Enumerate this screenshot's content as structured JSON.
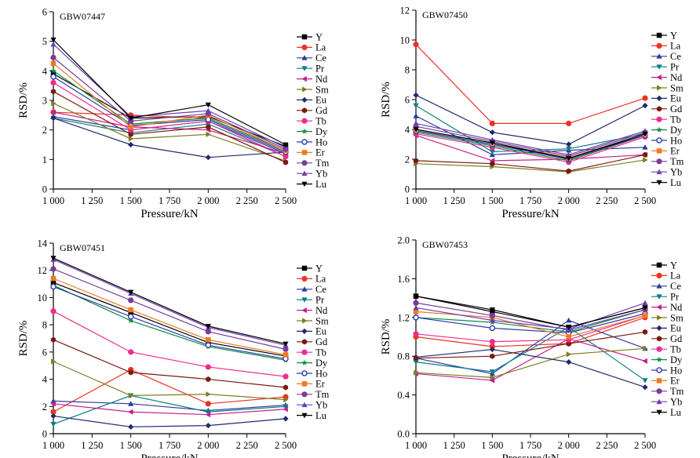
{
  "colors": {
    "Y": "#000000",
    "La": "#ee3224",
    "Ce": "#2b3a9c",
    "Pr": "#0a7d84",
    "Nd": "#c41f8e",
    "Sm": "#7b7f22",
    "Eu": "#1f2a6e",
    "Gd": "#7a1a10",
    "Tb": "#ef2c8c",
    "Dy": "#0a8a44",
    "Ho": "#2f3aa8",
    "Er": "#f07a22",
    "Tm": "#7a3d96",
    "Yb": "#6a3fb0",
    "Lu": "#000000"
  },
  "markers": {
    "Y": "square",
    "La": "circle",
    "Ce": "triangle-up",
    "Pr": "triangle-down",
    "Nd": "triangle-left",
    "Sm": "triangle-right",
    "Eu": "diamond",
    "Gd": "hexagon",
    "Tb": "circle",
    "Dy": "star",
    "Ho": "circle-open",
    "Er": "square",
    "Tm": "circle",
    "Yb": "triangle-up",
    "Lu": "triangle-down"
  },
  "chart_data": [
    {
      "type": "line",
      "title": "GBW07447",
      "xlabel": "Pressure/kN",
      "ylabel": "RSD/%",
      "x": [
        1000,
        1500,
        2000,
        2500
      ],
      "xlim": [
        1000,
        2500
      ],
      "xticks": [
        "1 000",
        "1 250",
        "1 500",
        "1 750",
        "2 000",
        "2 250",
        "2 500"
      ],
      "ylim": [
        0,
        6
      ],
      "yticks": [
        "0",
        "1",
        "2",
        "3",
        "4",
        "5",
        "6"
      ],
      "legend": "right",
      "series": [
        {
          "name": "Y",
          "values": [
            3.9,
            2.4,
            2.45,
            1.45
          ]
        },
        {
          "name": "La",
          "values": [
            2.6,
            2.5,
            2.4,
            1.3
          ]
        },
        {
          "name": "Ce",
          "values": [
            2.45,
            2.0,
            2.3,
            1.2
          ]
        },
        {
          "name": "Pr",
          "values": [
            2.4,
            1.9,
            2.2,
            1.1
          ]
        },
        {
          "name": "Nd",
          "values": [
            2.6,
            2.1,
            2.0,
            1.2
          ]
        },
        {
          "name": "Sm",
          "values": [
            2.9,
            1.7,
            1.85,
            0.95
          ]
        },
        {
          "name": "Eu",
          "values": [
            2.4,
            1.5,
            1.07,
            1.25
          ]
        },
        {
          "name": "Gd",
          "values": [
            3.3,
            1.85,
            2.1,
            0.9
          ]
        },
        {
          "name": "Tb",
          "values": [
            3.6,
            2.0,
            2.3,
            1.1
          ]
        },
        {
          "name": "Dy",
          "values": [
            4.0,
            2.2,
            2.4,
            1.3
          ]
        },
        {
          "name": "Ho",
          "values": [
            3.8,
            2.15,
            2.35,
            1.25
          ]
        },
        {
          "name": "Er",
          "values": [
            4.25,
            2.1,
            2.5,
            1.3
          ]
        },
        {
          "name": "Tm",
          "values": [
            4.45,
            2.3,
            2.55,
            1.35
          ]
        },
        {
          "name": "Yb",
          "values": [
            4.9,
            2.45,
            2.65,
            1.4
          ]
        },
        {
          "name": "Lu",
          "values": [
            5.05,
            2.4,
            2.85,
            1.5
          ]
        }
      ]
    },
    {
      "type": "line",
      "title": "GBW07450",
      "xlabel": "Pressure/kN",
      "ylabel": "RSD/%",
      "x": [
        1000,
        1500,
        2000,
        2500
      ],
      "xlim": [
        1000,
        2500
      ],
      "xticks": [
        "1 000",
        "1 250",
        "1 500",
        "1 750",
        "2 000",
        "2 250",
        "2 500"
      ],
      "ylim": [
        0,
        12
      ],
      "yticks": [
        "0",
        "2",
        "4",
        "6",
        "8",
        "10",
        "12"
      ],
      "legend": "right",
      "series": [
        {
          "name": "Y",
          "values": [
            3.9,
            3.0,
            2.1,
            3.6
          ]
        },
        {
          "name": "La",
          "values": [
            9.7,
            4.4,
            4.4,
            6.1
          ]
        },
        {
          "name": "Ce",
          "values": [
            4.9,
            2.3,
            2.6,
            2.8
          ]
        },
        {
          "name": "Pr",
          "values": [
            5.6,
            2.5,
            2.7,
            3.7
          ]
        },
        {
          "name": "Nd",
          "values": [
            3.6,
            1.9,
            2.0,
            2.3
          ]
        },
        {
          "name": "Sm",
          "values": [
            1.7,
            1.5,
            1.15,
            1.95
          ]
        },
        {
          "name": "Eu",
          "values": [
            6.3,
            3.8,
            3.0,
            5.6
          ]
        },
        {
          "name": "Gd",
          "values": [
            1.9,
            1.7,
            1.2,
            2.3
          ]
        },
        {
          "name": "Tb",
          "values": [
            3.7,
            2.8,
            1.8,
            3.5
          ]
        },
        {
          "name": "Dy",
          "values": [
            3.8,
            2.9,
            1.9,
            3.6
          ]
        },
        {
          "name": "Ho",
          "values": [
            3.9,
            3.0,
            2.0,
            3.6
          ]
        },
        {
          "name": "Er",
          "values": [
            4.0,
            3.1,
            2.1,
            3.7
          ]
        },
        {
          "name": "Tm",
          "values": [
            4.2,
            3.2,
            2.2,
            3.8
          ]
        },
        {
          "name": "Yb",
          "values": [
            4.4,
            3.3,
            2.3,
            3.9
          ]
        },
        {
          "name": "Lu",
          "values": [
            4.0,
            3.1,
            2.05,
            3.7
          ]
        }
      ]
    },
    {
      "type": "line",
      "title": "GBW07451",
      "xlabel": "Pressure/kN",
      "ylabel": "RSD/%",
      "x": [
        1000,
        1500,
        2000,
        2500
      ],
      "xlim": [
        1000,
        2500
      ],
      "xticks": [
        "1 000",
        "1 250",
        "1 500",
        "1 750",
        "2 000",
        "2 250",
        "2 500"
      ],
      "ylim": [
        0,
        14
      ],
      "yticks": [
        "0",
        "2",
        "4",
        "6",
        "8",
        "10",
        "12",
        "14"
      ],
      "legend": "right",
      "series": [
        {
          "name": "Y",
          "values": [
            11.1,
            8.9,
            6.7,
            5.7
          ]
        },
        {
          "name": "La",
          "values": [
            1.6,
            4.7,
            2.2,
            2.7
          ]
        },
        {
          "name": "Ce",
          "values": [
            2.4,
            2.2,
            1.7,
            2.1
          ]
        },
        {
          "name": "Pr",
          "values": [
            0.7,
            2.8,
            1.6,
            2.0
          ]
        },
        {
          "name": "Nd",
          "values": [
            2.2,
            1.6,
            1.4,
            1.8
          ]
        },
        {
          "name": "Sm",
          "values": [
            5.3,
            2.8,
            2.9,
            2.5
          ]
        },
        {
          "name": "Eu",
          "values": [
            1.3,
            0.5,
            0.6,
            1.1
          ]
        },
        {
          "name": "Gd",
          "values": [
            6.9,
            4.5,
            4.0,
            3.4
          ]
        },
        {
          "name": "Tb",
          "values": [
            9.0,
            6.0,
            4.9,
            4.2
          ]
        },
        {
          "name": "Dy",
          "values": [
            10.9,
            8.3,
            6.4,
            5.4
          ]
        },
        {
          "name": "Ho",
          "values": [
            10.8,
            8.6,
            6.5,
            5.5
          ]
        },
        {
          "name": "Er",
          "values": [
            11.4,
            9.1,
            6.9,
            5.8
          ]
        },
        {
          "name": "Tm",
          "values": [
            12.1,
            9.8,
            7.5,
            6.2
          ]
        },
        {
          "name": "Yb",
          "values": [
            12.8,
            10.3,
            7.8,
            6.5
          ]
        },
        {
          "name": "Lu",
          "values": [
            12.9,
            10.4,
            7.9,
            6.6
          ]
        }
      ]
    },
    {
      "type": "line",
      "title": "GBW07453",
      "xlabel": "Pressure/kN",
      "ylabel": "RSD/%",
      "x": [
        1000,
        1500,
        2000,
        2500
      ],
      "xlim": [
        1000,
        2500
      ],
      "xticks": [
        "1 000",
        "1 250",
        "1 500",
        "1 750",
        "2 000",
        "2 250",
        "2 500"
      ],
      "ylim": [
        0.0,
        2.0
      ],
      "yticks": [
        "0.0",
        "0.4",
        "0.8",
        "1.2",
        "1.6",
        "2.0"
      ],
      "legend": "right",
      "series": [
        {
          "name": "Y",
          "values": [
            1.42,
            1.26,
            1.1,
            1.3
          ]
        },
        {
          "name": "La",
          "values": [
            1.0,
            0.9,
            0.93,
            1.2
          ]
        },
        {
          "name": "Ce",
          "values": [
            0.78,
            0.62,
            1.17,
            0.88
          ]
        },
        {
          "name": "Pr",
          "values": [
            0.74,
            0.64,
            1.1,
            0.55
          ]
        },
        {
          "name": "Nd",
          "values": [
            0.62,
            0.55,
            0.98,
            0.75
          ]
        },
        {
          "name": "Sm",
          "values": [
            0.63,
            0.58,
            0.82,
            0.88
          ]
        },
        {
          "name": "Eu",
          "values": [
            0.79,
            0.87,
            0.74,
            0.48
          ]
        },
        {
          "name": "Gd",
          "values": [
            0.78,
            0.8,
            0.93,
            1.05
          ]
        },
        {
          "name": "Tb",
          "values": [
            1.03,
            0.95,
            0.97,
            1.22
          ]
        },
        {
          "name": "Dy",
          "values": [
            1.2,
            1.15,
            1.05,
            1.28
          ]
        },
        {
          "name": "Ho",
          "values": [
            1.2,
            1.09,
            1.04,
            1.24
          ]
        },
        {
          "name": "Er",
          "values": [
            1.26,
            1.2,
            1.0,
            1.22
          ]
        },
        {
          "name": "Tm",
          "values": [
            1.35,
            1.22,
            1.07,
            1.28
          ]
        },
        {
          "name": "Yb",
          "values": [
            1.3,
            1.17,
            1.08,
            1.35
          ]
        },
        {
          "name": "Lu",
          "values": [
            1.42,
            1.28,
            1.1,
            1.3
          ]
        }
      ]
    }
  ]
}
